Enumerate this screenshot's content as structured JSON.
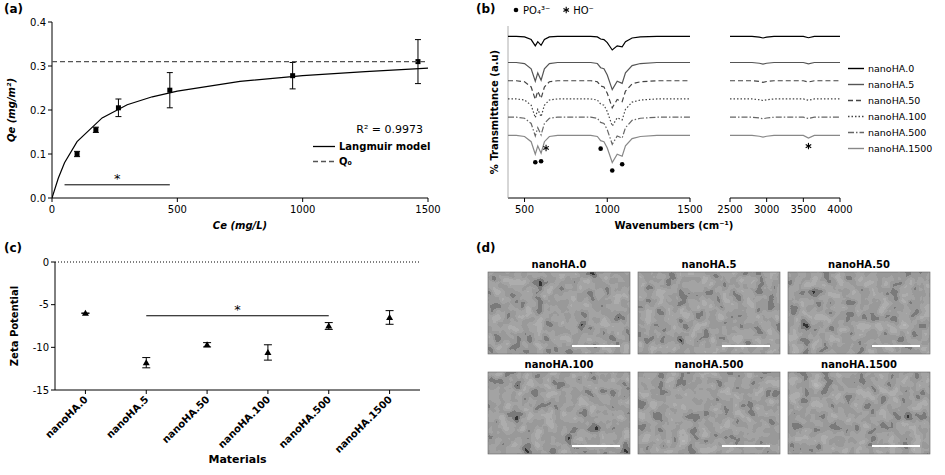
{
  "chart_data": [
    {
      "type": "scatter",
      "title": "(a)",
      "x_label": "Ce (mg/L)",
      "y_label": "Qe (mg/m²)",
      "xlim": [
        0,
        1500
      ],
      "xticks": [
        0,
        500,
        1000,
        1500
      ],
      "ylim": [
        0,
        0.4
      ],
      "yticks": [
        {
          "value": 0,
          "label": "0.0"
        },
        0.1,
        0.2,
        0.3,
        0.4
      ],
      "series": [
        {
          "type": "scatter",
          "color": "#000000",
          "marker": "square",
          "x": [
            100,
            175,
            265,
            470,
            960,
            1460
          ],
          "values": [
            0.1,
            0.155,
            0.205,
            0.245,
            0.278,
            0.31
          ],
          "errors": [
            0.006,
            0.006,
            0.02,
            0.04,
            0.03,
            0.05
          ]
        },
        {
          "name": "Langmuir model",
          "type": "line",
          "color": "#000000",
          "line_style": "solid",
          "x": [
            0,
            25,
            50,
            100,
            200,
            300,
            400,
            500,
            750,
            1000,
            1250,
            1500
          ],
          "values": [
            0,
            0.045,
            0.08,
            0.128,
            0.182,
            0.212,
            0.23,
            0.243,
            0.265,
            0.278,
            0.287,
            0.295
          ]
        },
        {
          "name": "Q₀",
          "type": "line",
          "color": "#555555",
          "line_style": "dashed",
          "x": [
            0,
            1500
          ],
          "values": [
            0.31,
            0.31
          ]
        }
      ],
      "annotations": [
        {
          "text": "R² = 0.9973"
        }
      ],
      "bracket": {
        "text": "*",
        "x": [
          50,
          470
        ],
        "y": 0.03
      },
      "legend": "lower right"
    },
    {
      "type": "line",
      "title": "(b)",
      "x_label": "Wavenumbers (cm⁻¹)",
      "y_label": "% Transmittance (a.u)",
      "xlim": [
        400,
        1500
      ],
      "xticks": [
        500,
        1000,
        1500
      ],
      "ylim": [
        0,
        6.6
      ],
      "tick_labels": "x",
      "legend": "right",
      "x": [
        400,
        450,
        500,
        540,
        565,
        580,
        600,
        620,
        650,
        700,
        800,
        900,
        940,
        960,
        980,
        1000,
        1030,
        1060,
        1090,
        1110,
        1150,
        1200,
        1300,
        1400,
        1500
      ],
      "series": [
        {
          "name": "nanoHA.0",
          "color": "#000000",
          "line_style": "solid",
          "values": [
            6.2,
            6.2,
            6.18,
            6.08,
            5.84,
            6.0,
            5.86,
            6.08,
            6.18,
            6.2,
            6.2,
            6.2,
            6.18,
            6.1,
            6.08,
            5.96,
            5.68,
            5.84,
            5.8,
            6.0,
            6.14,
            6.18,
            6.2,
            6.2,
            6.2
          ]
        },
        {
          "name": "nanoHA.5",
          "color": "#555555",
          "line_style": "solid",
          "values": [
            5.2,
            5.2,
            5.16,
            4.96,
            4.48,
            4.8,
            4.52,
            4.96,
            5.16,
            5.2,
            5.2,
            5.2,
            5.16,
            5.0,
            4.96,
            4.72,
            4.16,
            4.48,
            4.4,
            4.8,
            5.08,
            5.16,
            5.2,
            5.2,
            5.2
          ]
        },
        {
          "name": "nanoHA.50",
          "color": "#444444",
          "line_style": "dashed",
          "values": [
            4.5,
            4.5,
            4.46,
            4.26,
            3.78,
            4.1,
            3.82,
            4.26,
            4.46,
            4.5,
            4.5,
            4.5,
            4.46,
            4.3,
            4.26,
            4.02,
            3.46,
            3.78,
            3.7,
            4.1,
            4.38,
            4.46,
            4.5,
            4.5,
            4.5
          ]
        },
        {
          "name": "nanoHA.100",
          "color": "#444444",
          "line_style": "dotted",
          "values": [
            3.8,
            3.8,
            3.76,
            3.56,
            3.08,
            3.4,
            3.12,
            3.56,
            3.76,
            3.8,
            3.8,
            3.8,
            3.76,
            3.6,
            3.56,
            3.32,
            2.76,
            3.08,
            3.0,
            3.4,
            3.68,
            3.76,
            3.8,
            3.8,
            3.8
          ]
        },
        {
          "name": "nanoHA.500",
          "color": "#666666",
          "line_style": "dashdot",
          "values": [
            3.1,
            3.1,
            3.06,
            2.86,
            2.38,
            2.7,
            2.42,
            2.86,
            3.06,
            3.1,
            3.1,
            3.1,
            3.06,
            2.9,
            2.86,
            2.62,
            2.06,
            2.38,
            2.3,
            2.7,
            2.98,
            3.06,
            3.1,
            3.1,
            3.1
          ]
        },
        {
          "name": "nanoHA.1500",
          "color": "#888888",
          "line_style": "solid",
          "values": [
            2.4,
            2.4,
            2.36,
            2.16,
            1.68,
            2.0,
            1.72,
            2.16,
            2.36,
            2.4,
            2.4,
            2.4,
            2.36,
            2.2,
            2.16,
            1.92,
            1.36,
            1.68,
            1.6,
            2.0,
            2.28,
            2.36,
            2.4,
            2.4,
            2.4
          ]
        }
      ],
      "annotations": [
        {
          "text": "PO₄³⁻",
          "marker": "dot",
          "x": [
            565,
            600,
            960,
            1030,
            1090
          ]
        },
        {
          "text": "HO⁻",
          "marker": "star",
          "x": [
            630
          ]
        }
      ]
    },
    {
      "type": "line",
      "xlim": [
        2500,
        4000
      ],
      "xticks": [
        2500,
        3000,
        3500,
        4000
      ],
      "ylim": [
        0,
        6.6
      ],
      "tick_labels": "x",
      "x": [
        2500,
        2800,
        2900,
        2950,
        3000,
        3100,
        3400,
        3500,
        3570,
        3650,
        4000
      ],
      "series": [
        {
          "color": "#000000",
          "line_style": "solid",
          "values": [
            6.2,
            6.2,
            6.17,
            6.14,
            6.17,
            6.2,
            6.2,
            6.2,
            6.15,
            6.2,
            6.2
          ]
        },
        {
          "color": "#555555",
          "line_style": "solid",
          "values": [
            5.2,
            5.2,
            5.17,
            5.14,
            5.17,
            5.2,
            5.2,
            5.2,
            5.15,
            5.2,
            5.2
          ]
        },
        {
          "color": "#444444",
          "line_style": "dashed",
          "values": [
            4.5,
            4.5,
            4.47,
            4.44,
            4.47,
            4.5,
            4.5,
            4.5,
            4.45,
            4.5,
            4.5
          ]
        },
        {
          "color": "#444444",
          "line_style": "dotted",
          "values": [
            3.8,
            3.8,
            3.77,
            3.74,
            3.77,
            3.8,
            3.8,
            3.8,
            3.75,
            3.8,
            3.8
          ]
        },
        {
          "color": "#666666",
          "line_style": "dashdot",
          "values": [
            3.1,
            3.1,
            3.07,
            3.04,
            3.07,
            3.1,
            3.1,
            3.1,
            3.05,
            3.1,
            3.1
          ]
        },
        {
          "color": "#888888",
          "line_style": "solid",
          "values": [
            2.4,
            2.4,
            2.37,
            2.34,
            2.37,
            2.4,
            2.4,
            2.4,
            2.3,
            2.4,
            2.4
          ]
        }
      ],
      "annotations": [
        {
          "marker": "star",
          "x": [
            3570
          ]
        }
      ]
    },
    {
      "type": "scatter",
      "title": "(c)",
      "x_label": "Materials",
      "y_label": "Zeta Potential",
      "categories": [
        "nanoHA.0",
        "nanoHA.5",
        "nanoHA.50",
        "nanoHA.100",
        "nanoHA.500",
        "nanoHA.1500"
      ],
      "values": [
        -6.0,
        -11.8,
        -9.7,
        -10.6,
        -7.5,
        -6.5
      ],
      "errors": [
        0,
        0.6,
        0.25,
        0.9,
        0.4,
        0.8
      ],
      "color": "#000000",
      "marker": "triangle",
      "ylim": [
        -15,
        0
      ],
      "yticks": [
        -15,
        -10,
        -5,
        0
      ],
      "reference_line": 0,
      "bracket": {
        "text": "*",
        "categories": [
          1,
          4
        ],
        "y": -6.3
      }
    }
  ],
  "micrographs": {
    "title": "(d)",
    "panels": [
      "nanoHA.0",
      "nanoHA.5",
      "nanoHA.50",
      "nanoHA.100",
      "nanoHA.500",
      "nanoHA.1500"
    ]
  }
}
